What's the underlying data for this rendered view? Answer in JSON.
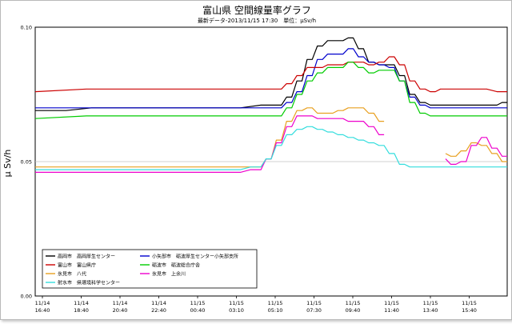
{
  "chart_data": {
    "type": "line",
    "title": "富山県 空間線量率グラフ",
    "subtitle": "最新データ-2013/11/15 17:30　単位：μSv/h",
    "ylabel": "μ Sv/h",
    "xlabel": "",
    "ylim": [
      0,
      0.1
    ],
    "yticks": [
      "0.00",
      "0.05",
      "0.10"
    ],
    "ytick_values": [
      0,
      0.05,
      0.1
    ],
    "x_ticks": [
      {
        "date": "11/14",
        "time": "16:40"
      },
      {
        "date": "11/14",
        "time": "18:40"
      },
      {
        "date": "11/14",
        "time": "20:40"
      },
      {
        "date": "11/14",
        "time": "22:40"
      },
      {
        "date": "11/15",
        "time": "00:40"
      },
      {
        "date": "11/15",
        "time": "03:10"
      },
      {
        "date": "11/15",
        "time": "05:10"
      },
      {
        "date": "11/15",
        "time": "07:30"
      },
      {
        "date": "11/15",
        "time": "09:40"
      },
      {
        "date": "11/15",
        "time": "11:40"
      },
      {
        "date": "11/15",
        "time": "13:40"
      },
      {
        "date": "11/15",
        "time": "15:40"
      }
    ],
    "grid": true,
    "legend_position": "bottom-left",
    "series": [
      {
        "name": "高岡市　高岡厚生センター",
        "color": "#000000",
        "points": [
          [
            0,
            0.069
          ],
          [
            3,
            0.069
          ],
          [
            8,
            0.07
          ],
          [
            14,
            0.07
          ],
          [
            20,
            0.07
          ],
          [
            24,
            0.071
          ],
          [
            25,
            0.074
          ],
          [
            26,
            0.08
          ],
          [
            27,
            0.088
          ],
          [
            28,
            0.093
          ],
          [
            29,
            0.095
          ],
          [
            30,
            0.095
          ],
          [
            31,
            0.096
          ],
          [
            32,
            0.092
          ],
          [
            33,
            0.087
          ],
          [
            34,
            0.086
          ],
          [
            35,
            0.086
          ],
          [
            36,
            0.082
          ],
          [
            37,
            0.075
          ],
          [
            38,
            0.072
          ],
          [
            39,
            0.071
          ],
          [
            40,
            0.071
          ],
          [
            44,
            0.071
          ],
          [
            45,
            0.071
          ],
          [
            46,
            0.072
          ]
        ]
      },
      {
        "name": "小矢部市　砺波厚生センター小矢部支所",
        "color": "#0000cc",
        "points": [
          [
            0,
            0.07
          ],
          [
            24,
            0.07
          ],
          [
            25,
            0.072
          ],
          [
            26,
            0.076
          ],
          [
            27,
            0.082
          ],
          [
            28,
            0.088
          ],
          [
            29,
            0.09
          ],
          [
            30,
            0.09
          ],
          [
            31,
            0.092
          ],
          [
            32,
            0.089
          ],
          [
            33,
            0.087
          ],
          [
            34,
            0.086
          ],
          [
            35,
            0.085
          ],
          [
            36,
            0.08
          ],
          [
            37,
            0.074
          ],
          [
            38,
            0.071
          ],
          [
            39,
            0.07
          ],
          [
            46,
            0.07
          ]
        ]
      },
      {
        "name": "富山市　富山県庁",
        "color": "#cc0000",
        "points": [
          [
            0,
            0.076
          ],
          [
            10,
            0.077
          ],
          [
            20,
            0.077
          ],
          [
            24,
            0.077
          ],
          [
            25,
            0.079
          ],
          [
            26,
            0.082
          ],
          [
            27,
            0.085
          ],
          [
            28,
            0.085
          ],
          [
            29,
            0.086
          ],
          [
            30,
            0.086
          ],
          [
            31,
            0.087
          ],
          [
            32,
            0.087
          ],
          [
            33,
            0.086
          ],
          [
            34,
            0.087
          ],
          [
            35,
            0.089
          ],
          [
            36,
            0.086
          ],
          [
            37,
            0.08
          ],
          [
            38,
            0.077
          ],
          [
            39,
            0.076
          ],
          [
            40,
            0.077
          ],
          [
            44,
            0.077
          ],
          [
            46,
            0.076
          ]
        ]
      },
      {
        "name": "砺波市　砺波総合庁舎",
        "color": "#00cc00",
        "points": [
          [
            0,
            0.066
          ],
          [
            10,
            0.067
          ],
          [
            20,
            0.067
          ],
          [
            24,
            0.067
          ],
          [
            25,
            0.07
          ],
          [
            26,
            0.075
          ],
          [
            27,
            0.08
          ],
          [
            28,
            0.083
          ],
          [
            29,
            0.085
          ],
          [
            30,
            0.085
          ],
          [
            31,
            0.087
          ],
          [
            32,
            0.085
          ],
          [
            33,
            0.083
          ],
          [
            34,
            0.084
          ],
          [
            35,
            0.084
          ],
          [
            36,
            0.08
          ],
          [
            37,
            0.072
          ],
          [
            38,
            0.068
          ],
          [
            39,
            0.067
          ],
          [
            46,
            0.067
          ]
        ]
      },
      {
        "name": "氷見市　八代",
        "color": "#e8a020",
        "points": [
          [
            0,
            0.048
          ],
          [
            10,
            0.048
          ],
          [
            20,
            0.048
          ],
          [
            22,
            0.048
          ],
          [
            23,
            0.051
          ],
          [
            24,
            0.058
          ],
          [
            25,
            0.065
          ],
          [
            26,
            0.069
          ],
          [
            27,
            0.07
          ],
          [
            28,
            0.068
          ],
          [
            29,
            0.068
          ],
          [
            30,
            0.069
          ],
          [
            31,
            0.07
          ],
          [
            32,
            0.07
          ],
          [
            33,
            0.068
          ],
          [
            34,
            0.065
          ],
          [
            34.2,
            null
          ],
          [
            39.8,
            null
          ],
          [
            40,
            0.053
          ],
          [
            41,
            0.052
          ],
          [
            42,
            0.054
          ],
          [
            43,
            0.057
          ],
          [
            44,
            0.056
          ],
          [
            45,
            0.053
          ],
          [
            46,
            0.05
          ]
        ]
      },
      {
        "name": "氷見市　上余川",
        "color": "#ee00cc",
        "points": [
          [
            0,
            0.046
          ],
          [
            10,
            0.046
          ],
          [
            20,
            0.046
          ],
          [
            22,
            0.047
          ],
          [
            23,
            0.051
          ],
          [
            24,
            0.057
          ],
          [
            25,
            0.063
          ],
          [
            26,
            0.067
          ],
          [
            27,
            0.067
          ],
          [
            28,
            0.066
          ],
          [
            29,
            0.066
          ],
          [
            30,
            0.066
          ],
          [
            31,
            0.065
          ],
          [
            32,
            0.065
          ],
          [
            33,
            0.063
          ],
          [
            34,
            0.06
          ],
          [
            34.2,
            null
          ],
          [
            39.8,
            null
          ],
          [
            40,
            0.051
          ],
          [
            41,
            0.049
          ],
          [
            42,
            0.05
          ],
          [
            43,
            0.056
          ],
          [
            44,
            0.059
          ],
          [
            45,
            0.055
          ],
          [
            46,
            0.052
          ]
        ]
      },
      {
        "name": "射水市　県環境科学センター",
        "color": "#33dddd",
        "points": [
          [
            0,
            0.047
          ],
          [
            10,
            0.047
          ],
          [
            20,
            0.047
          ],
          [
            22,
            0.048
          ],
          [
            23,
            0.051
          ],
          [
            24,
            0.056
          ],
          [
            25,
            0.06
          ],
          [
            26,
            0.062
          ],
          [
            27,
            0.063
          ],
          [
            28,
            0.062
          ],
          [
            29,
            0.061
          ],
          [
            30,
            0.06
          ],
          [
            31,
            0.059
          ],
          [
            32,
            0.058
          ],
          [
            33,
            0.057
          ],
          [
            34,
            0.056
          ],
          [
            35,
            0.053
          ],
          [
            36,
            0.049
          ],
          [
            37,
            0.048
          ],
          [
            40,
            0.048
          ],
          [
            44,
            0.048
          ],
          [
            46,
            0.048
          ]
        ]
      }
    ]
  }
}
